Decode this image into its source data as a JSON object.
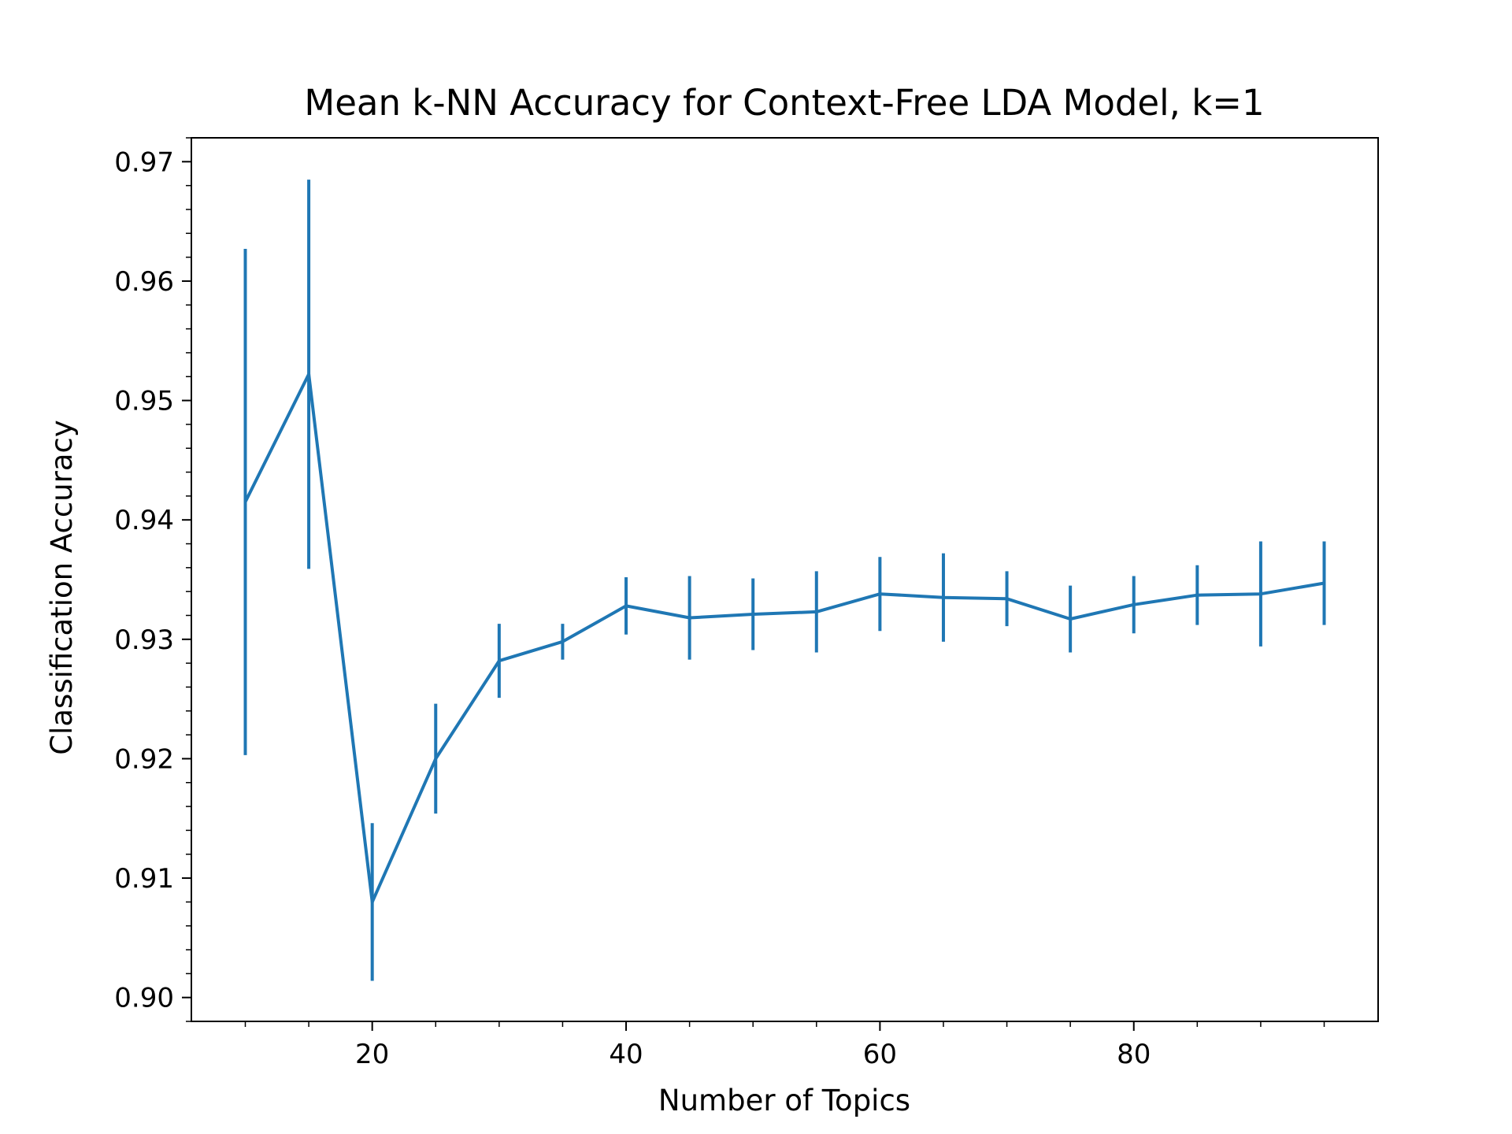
{
  "chart_data": {
    "type": "line",
    "title": "Mean k-NN Accuracy for Context-Free LDA Model, k=1",
    "xlabel": "Number of Topics",
    "ylabel": "Classification Accuracy",
    "xlim": [
      5.75,
      99.25
    ],
    "ylim": [
      0.898,
      0.972
    ],
    "x_ticks": [
      20,
      40,
      60,
      80
    ],
    "y_ticks": [
      0.9,
      0.91,
      0.92,
      0.93,
      0.94,
      0.95,
      0.96,
      0.97
    ],
    "y_tick_labels": [
      "0.90",
      "0.91",
      "0.92",
      "0.93",
      "0.94",
      "0.95",
      "0.96",
      "0.97"
    ],
    "x_minor_ticks": [
      10,
      15,
      25,
      30,
      35,
      45,
      50,
      55,
      65,
      70,
      75,
      85,
      90,
      95
    ],
    "y_minor_step": 0.002,
    "grid": false,
    "series_color": "#1f77b4",
    "series": [
      {
        "x": [
          10,
          15,
          20,
          25,
          30,
          35,
          40,
          45,
          50,
          55,
          60,
          65,
          70,
          75,
          80,
          85,
          90,
          95
        ],
        "values": [
          0.9415,
          0.9522,
          0.908,
          0.92,
          0.9282,
          0.9298,
          0.9328,
          0.9318,
          0.9321,
          0.9323,
          0.9338,
          0.9335,
          0.9334,
          0.9317,
          0.9329,
          0.9337,
          0.9338,
          0.9347
        ],
        "yerr": [
          0.0212,
          0.0163,
          0.0066,
          0.0046,
          0.0031,
          0.0015,
          0.0024,
          0.0035,
          0.003,
          0.0034,
          0.0031,
          0.0037,
          0.0023,
          0.0028,
          0.0024,
          0.0025,
          0.0044,
          0.0035
        ]
      }
    ]
  }
}
